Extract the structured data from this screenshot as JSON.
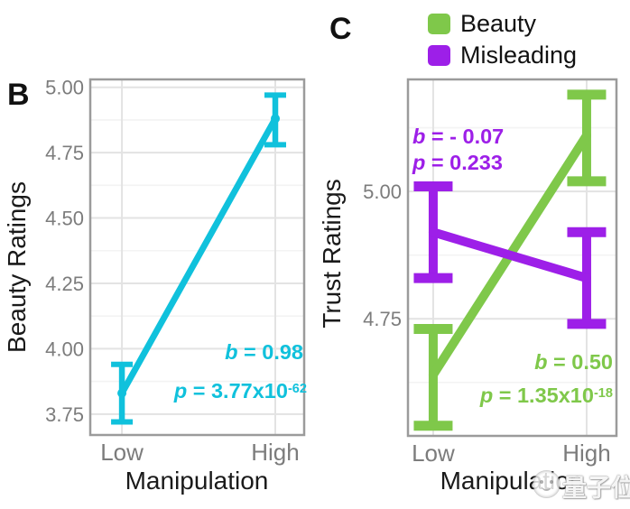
{
  "figure_type": "two-panel line chart with error bars",
  "watermark": {
    "text": "量子位",
    "logo": "qubit-logo"
  },
  "chart_data": [
    {
      "type": "line",
      "panel": "B",
      "xlabel": "Manipulation",
      "ylabel": "Beauty Ratings",
      "categories": [
        "Low",
        "High"
      ],
      "yticks": [
        "5.00",
        "4.75",
        "4.50",
        "4.25",
        "4.00",
        "3.75"
      ],
      "yticks_minor": [
        4.875,
        4.625,
        4.375,
        4.125,
        3.875
      ],
      "ylim": [
        3.67,
        5.03
      ],
      "grid": true,
      "series": [
        {
          "name": "Beauty Ratings",
          "color": "#10C1DC",
          "values": [
            3.83,
            4.88
          ],
          "ci_low": [
            3.72,
            4.78
          ],
          "ci_high": [
            3.94,
            4.97
          ]
        }
      ],
      "annotations": [
        {
          "var": "b",
          "rest": " = 0.98",
          "exp": "",
          "color": "#10C1DC"
        },
        {
          "var": "p",
          "rest": " = 3.77x10",
          "exp": "-62",
          "color": "#10C1DC"
        }
      ]
    },
    {
      "type": "line",
      "panel": "C",
      "xlabel": "Manipulation",
      "ylabel": "Trust Ratings",
      "categories": [
        "Low",
        "High"
      ],
      "yticks": [
        "5.00",
        "4.75"
      ],
      "yticks_minor": [
        5.125,
        4.875,
        4.625
      ],
      "ylim": [
        4.52,
        5.22
      ],
      "grid": true,
      "legend": {
        "position": "top-right",
        "items": [
          {
            "label": "Beauty",
            "color": "#7FC84A"
          },
          {
            "label": "Misleading",
            "color": "#9D1FE8"
          }
        ]
      },
      "series": [
        {
          "name": "Beauty",
          "color": "#7FC84A",
          "values": [
            4.64,
            5.11
          ],
          "ci_low": [
            4.54,
            5.02
          ],
          "ci_high": [
            4.73,
            5.19
          ]
        },
        {
          "name": "Misleading",
          "color": "#9D1FE8",
          "values": [
            4.92,
            4.83
          ],
          "ci_low": [
            4.83,
            4.74
          ],
          "ci_high": [
            5.01,
            4.92
          ]
        }
      ],
      "annotations": [
        {
          "var": "b",
          "rest": " = - 0.07",
          "exp": "",
          "color": "#9D1FE8"
        },
        {
          "var": "p",
          "rest": " = 0.233",
          "exp": "",
          "color": "#9D1FE8"
        },
        {
          "var": "b",
          "rest": " = 0.50",
          "exp": "",
          "color": "#7FC84A"
        },
        {
          "var": "p",
          "rest": " = 1.35x10",
          "exp": "-18",
          "color": "#7FC84A"
        }
      ]
    }
  ]
}
